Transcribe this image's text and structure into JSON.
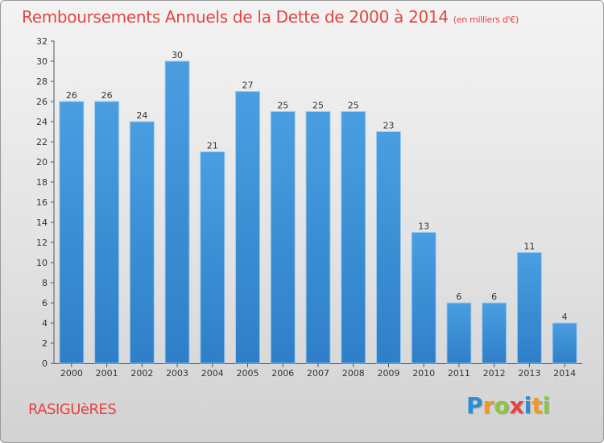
{
  "header": {
    "title": "Remboursements Annuels de la Dette de 2000 à 2014",
    "unit": "(en milliers d'€)"
  },
  "footer": {
    "commune": "RASIGUèRES",
    "logo_text": "Proxiti",
    "logo_letters": [
      {
        "ch": "P",
        "color": "#2a8fd8"
      },
      {
        "ch": "r",
        "color": "#f29a1e"
      },
      {
        "ch": "o",
        "color": "#8cc63f"
      },
      {
        "ch": "x",
        "color": "#e4443f"
      },
      {
        "ch": "i",
        "color": "#2a8fd8"
      },
      {
        "ch": "t",
        "color": "#f29a1e"
      },
      {
        "ch": "i",
        "color": "#8cc63f"
      }
    ]
  },
  "chart_data": {
    "type": "bar",
    "title": "Remboursements Annuels de la Dette de 2000 à 2014",
    "subtitle": "(en milliers d'€)",
    "categories": [
      "2000",
      "2001",
      "2002",
      "2003",
      "2004",
      "2005",
      "2006",
      "2007",
      "2008",
      "2009",
      "2010",
      "2011",
      "2012",
      "2013",
      "2014"
    ],
    "values": [
      26,
      26,
      24,
      30,
      21,
      27,
      25,
      25,
      25,
      23,
      13,
      6,
      6,
      11,
      4
    ],
    "ylim": [
      0,
      32
    ],
    "yticks": [
      0,
      2,
      4,
      6,
      8,
      10,
      12,
      14,
      16,
      18,
      20,
      22,
      24,
      26,
      28,
      30,
      32
    ],
    "grid": false,
    "data_labels": true,
    "bar_color": "#4a9ee0",
    "bar_color_dark": "#2e7fc8"
  }
}
